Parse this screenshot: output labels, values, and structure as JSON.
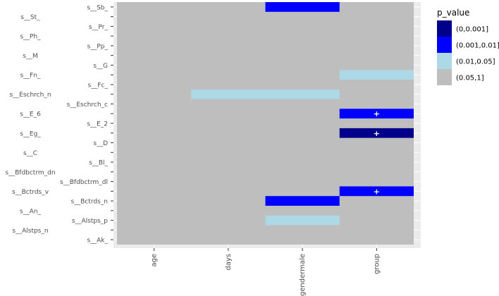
{
  "chart_data": {
    "type": "heatmap",
    "title": "",
    "xlabel": "",
    "ylabel": "",
    "grid": true,
    "legend_placement": "top-right",
    "x_categories": [
      "age",
      "days",
      "gendermale",
      "group"
    ],
    "y_categories": [
      "s__Ak_",
      "s__Alstps_n",
      "s__Alstps_p",
      "s__An_",
      "s__Bctrds_n",
      "s__Bctrds_v",
      "s__Bfdbctrm_dl",
      "s__Bfdbctrm_dn",
      "s__Bl_",
      "s__C",
      "s__D",
      "s__Eg_",
      "s__E_2",
      "s__E_6",
      "s__Eschrch_c",
      "s__Eschrch_n",
      "s__Fc_",
      "s__Fn_",
      "s__G",
      "s__M",
      "s__Pp_",
      "s__Ph_",
      "s__Pr_",
      "s__St_",
      "s__Sb_"
    ],
    "y_labels_left_column": [
      "s__Alstps_n",
      "s__An_",
      "s__Bctrds_v",
      "s__Bfdbctrm_dn",
      "s__C",
      "s__Eg_",
      "s__E_6",
      "s__Eschrch_n",
      "s__Fn_",
      "s__M",
      "s__Ph_",
      "s__St_"
    ],
    "y_labels_right_column": [
      "s__Ak_",
      "s__Alstps_p",
      "s__Bctrds_n",
      "s__Bfdbctrm_dl",
      "s__Bl_",
      "s__D",
      "s__E_2",
      "s__Eschrch_c",
      "s__Fc_",
      "s__G",
      "s__Pp_",
      "s__Pr_",
      "s__Sb_"
    ],
    "legend": {
      "title": "p_value",
      "levels": [
        {
          "label": "(0,0.001]",
          "color": "#00008b"
        },
        {
          "label": "(0.001,0.01]",
          "color": "#0000ff"
        },
        {
          "label": "(0.01,0.05]",
          "color": "#add8e6"
        },
        {
          "label": "(0.05,1]",
          "color": "#bebebe"
        }
      ]
    },
    "default_level": 3,
    "highlighted_cells": [
      {
        "y": "s__Sb_",
        "x": "gendermale",
        "level": 1,
        "mark": ""
      },
      {
        "y": "s__Fn_",
        "x": "group",
        "level": 2,
        "mark": ""
      },
      {
        "y": "s__Eschrch_n",
        "x": "days",
        "level": 2,
        "mark": ""
      },
      {
        "y": "s__Eschrch_n",
        "x": "gendermale",
        "level": 2,
        "mark": ""
      },
      {
        "y": "s__E_6",
        "x": "group",
        "level": 1,
        "mark": "+"
      },
      {
        "y": "s__Eg_",
        "x": "group",
        "level": 0,
        "mark": "+"
      },
      {
        "y": "s__Bctrds_v",
        "x": "group",
        "level": 1,
        "mark": "+"
      },
      {
        "y": "s__Bctrds_n",
        "x": "gendermale",
        "level": 1,
        "mark": ""
      },
      {
        "y": "s__Alstps_p",
        "x": "gendermale",
        "level": 2,
        "mark": ""
      }
    ]
  }
}
